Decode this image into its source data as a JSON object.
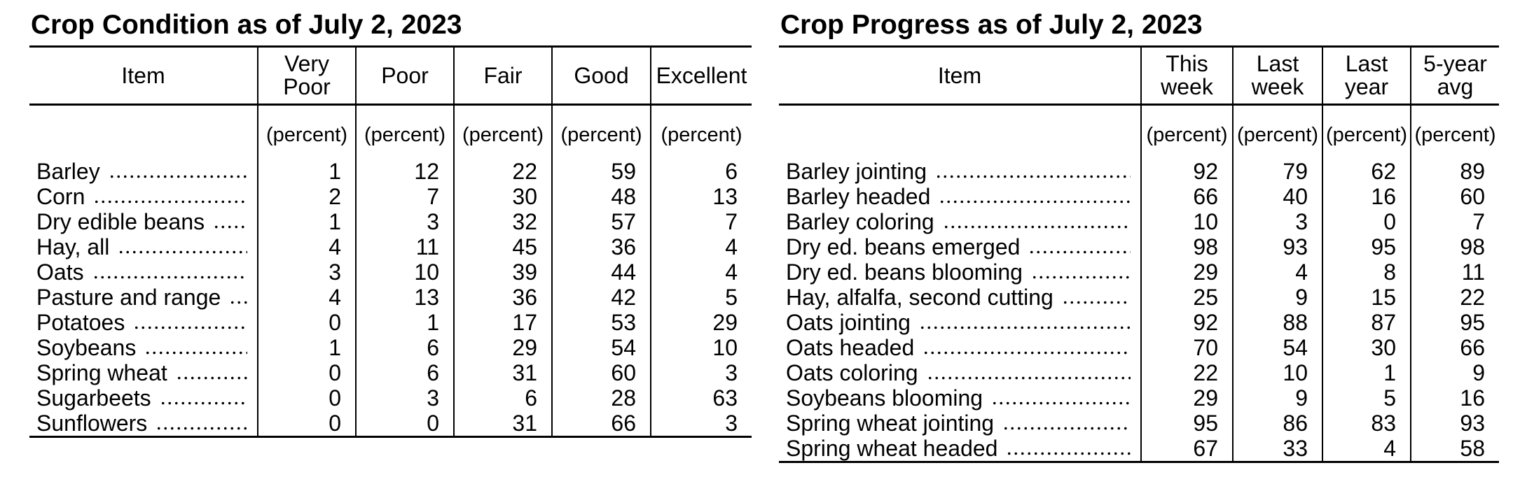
{
  "page": {
    "background_color": "#ffffff",
    "ink_color": "#000000"
  },
  "crop_condition": {
    "title": "Crop Condition as of July 2, 2023",
    "columns": [
      "Item",
      "Very\nPoor",
      "Poor",
      "Fair",
      "Good",
      "Excellent"
    ],
    "units": [
      "(percent)",
      "(percent)",
      "(percent)",
      "(percent)",
      "(percent)"
    ],
    "rows": [
      {
        "label": "Barley",
        "values": [
          1,
          12,
          22,
          59,
          6
        ]
      },
      {
        "label": "Corn",
        "values": [
          2,
          7,
          30,
          48,
          13
        ]
      },
      {
        "label": "Dry edible beans",
        "values": [
          1,
          3,
          32,
          57,
          7
        ]
      },
      {
        "label": "Hay, all",
        "values": [
          4,
          11,
          45,
          36,
          4
        ]
      },
      {
        "label": "Oats",
        "values": [
          3,
          10,
          39,
          44,
          4
        ]
      },
      {
        "label": "Pasture and range",
        "values": [
          4,
          13,
          36,
          42,
          5
        ]
      },
      {
        "label": "Potatoes",
        "values": [
          0,
          1,
          17,
          53,
          29
        ]
      },
      {
        "label": "Soybeans",
        "values": [
          1,
          6,
          29,
          54,
          10
        ]
      },
      {
        "label": "Spring wheat",
        "values": [
          0,
          6,
          31,
          60,
          3
        ]
      },
      {
        "label": "Sugarbeets",
        "values": [
          0,
          3,
          6,
          28,
          63
        ]
      },
      {
        "label": "Sunflowers",
        "values": [
          0,
          0,
          31,
          66,
          3
        ]
      }
    ]
  },
  "crop_progress": {
    "title": "Crop Progress as of July 2, 2023",
    "columns": [
      "Item",
      "This\nweek",
      "Last\nweek",
      "Last\nyear",
      "5-year\navg"
    ],
    "units": [
      "(percent)",
      "(percent)",
      "(percent)",
      "(percent)"
    ],
    "rows": [
      {
        "label": "Barley jointing",
        "values": [
          92,
          79,
          62,
          89
        ]
      },
      {
        "label": "Barley headed",
        "values": [
          66,
          40,
          16,
          60
        ]
      },
      {
        "label": "Barley coloring",
        "values": [
          10,
          3,
          0,
          7
        ]
      },
      {
        "label": "Dry ed. beans emerged",
        "values": [
          98,
          93,
          95,
          98
        ]
      },
      {
        "label": "Dry ed. beans blooming",
        "values": [
          29,
          4,
          8,
          11
        ]
      },
      {
        "label": "Hay, alfalfa, second cutting",
        "values": [
          25,
          9,
          15,
          22
        ]
      },
      {
        "label": "Oats jointing",
        "values": [
          92,
          88,
          87,
          95
        ]
      },
      {
        "label": "Oats headed",
        "values": [
          70,
          54,
          30,
          66
        ]
      },
      {
        "label": "Oats coloring",
        "values": [
          22,
          10,
          1,
          9
        ]
      },
      {
        "label": "Soybeans blooming",
        "values": [
          29,
          9,
          5,
          16
        ]
      },
      {
        "label": "Spring wheat jointing",
        "values": [
          95,
          86,
          83,
          93
        ]
      },
      {
        "label": "Spring wheat headed",
        "values": [
          67,
          33,
          4,
          58
        ]
      }
    ]
  }
}
